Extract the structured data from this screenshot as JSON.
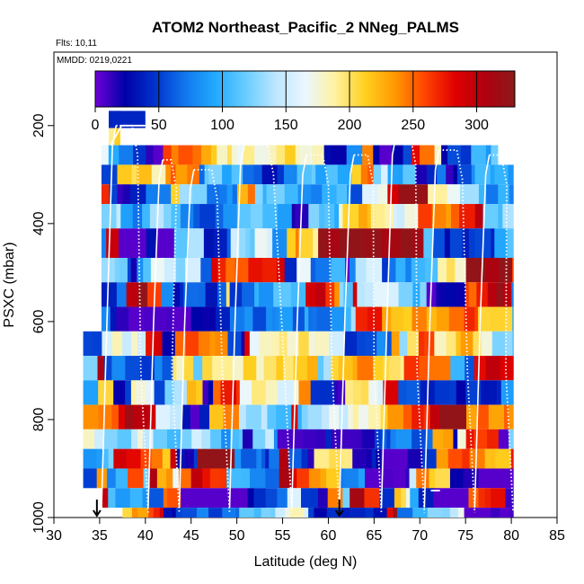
{
  "chart_data": {
    "type": "heatmap",
    "title": "ATOM2 Northeast_Pacific_2 NNeg_PALMS",
    "flights_label": "Flts: 10,11",
    "dates_label": "MMDD: 0219,0221",
    "xlabel": "Latitude (deg N)",
    "ylabel": "PSXC (mbar)",
    "xlim": [
      30,
      85
    ],
    "ylim": [
      1000,
      50
    ],
    "y_reversed": true,
    "x_ticks": [
      30,
      35,
      40,
      45,
      50,
      55,
      60,
      65,
      70,
      75,
      80,
      85
    ],
    "y_ticks": [
      200,
      400,
      600,
      800,
      1000
    ],
    "colorbar": {
      "range": [
        0,
        330
      ],
      "ticks": [
        0,
        50,
        100,
        150,
        200,
        250,
        300
      ],
      "palette": [
        "#6f00d6",
        "#0000a8",
        "#0033cc",
        "#1177ee",
        "#22aaff",
        "#66ccff",
        "#bbe6ff",
        "#eaf7ff",
        "#fff2a0",
        "#ffd020",
        "#ff9900",
        "#ff4400",
        "#e00000",
        "#b00010",
        "#8b1a1a"
      ]
    },
    "arrows_at_lat": [
      34.7,
      61.2
    ],
    "profile_lats": [
      35.2,
      40.3,
      43.7,
      49.2,
      56.0,
      61.2,
      65.8,
      70.5,
      76.0,
      80.2
    ],
    "profile_tops_mbar": [
      200,
      270,
      290,
      240,
      260,
      260,
      220,
      250,
      260,
      270
    ]
  }
}
